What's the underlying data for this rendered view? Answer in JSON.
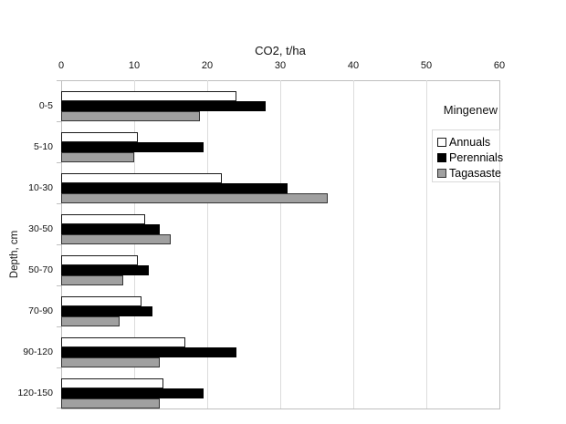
{
  "chart_data": {
    "type": "bar",
    "orientation": "horizontal",
    "title": "CO2, t/ha",
    "ylabel": "Depth, cm",
    "annotation": "Mingenew",
    "xlim": [
      0,
      60
    ],
    "xticks": [
      0,
      10,
      20,
      30,
      40,
      50,
      60
    ],
    "grid": true,
    "legend_position": "right",
    "categories": [
      "0-5",
      "5-10",
      "10-30",
      "30-50",
      "50-70",
      "70-90",
      "90-120",
      "120-150"
    ],
    "series": [
      {
        "name": "Annuals",
        "fill": "#ffffff",
        "border": "#1a1a1a",
        "values": [
          24,
          10.5,
          22,
          11.5,
          10.5,
          11,
          17,
          14
        ]
      },
      {
        "name": "Perennials",
        "fill": "#000000",
        "border": "#000000",
        "values": [
          28,
          19.5,
          31,
          13.5,
          12,
          12.5,
          24,
          19.5
        ]
      },
      {
        "name": "Tagasaste",
        "fill": "#a0a0a0",
        "border": "#333333",
        "values": [
          19,
          10,
          36.5,
          15,
          8.5,
          8,
          13.5,
          13.5
        ]
      }
    ]
  },
  "colors": {
    "gridline": "#dcdcdc",
    "axis": "#bfbfbf",
    "legend_border": "#d9d9d9",
    "background": "#ffffff"
  }
}
